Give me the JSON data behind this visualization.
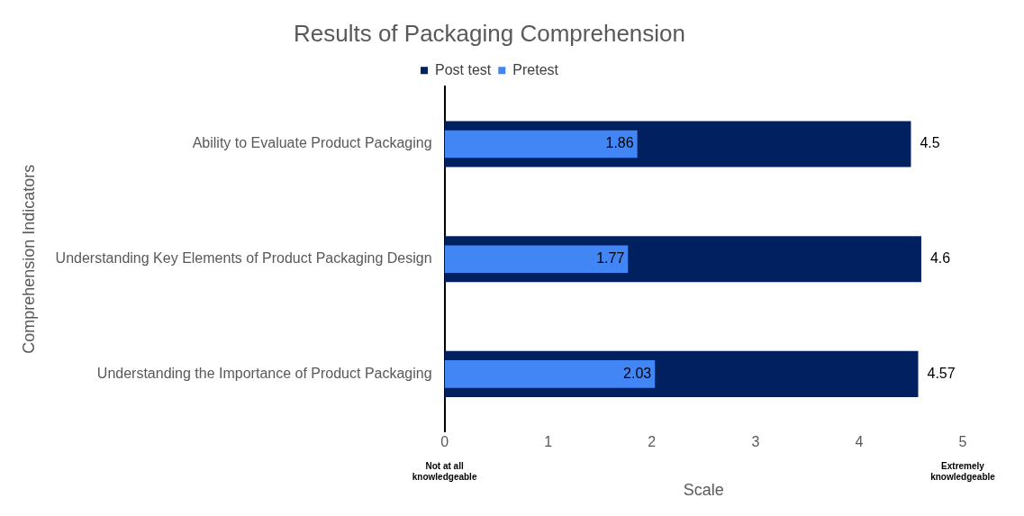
{
  "chart_data": {
    "type": "bar",
    "orientation": "horizontal",
    "title": "Results of Packaging Comprehension",
    "xlabel": "Scale",
    "ylabel": "Comprehension Indicators",
    "categories": [
      "Ability to Evaluate Product Packaging",
      "Understanding Key Elements of Product Packaging Design",
      "Understanding the Importance of Product Packaging"
    ],
    "series": [
      {
        "name": "Post test",
        "color": "#002060",
        "values": [
          4.5,
          4.6,
          4.57
        ]
      },
      {
        "name": "Pretest",
        "color": "#4285f4",
        "values": [
          1.86,
          1.77,
          2.03
        ]
      }
    ],
    "xlim": [
      0,
      5
    ],
    "xticks": [
      0,
      1,
      2,
      3,
      4,
      5
    ],
    "grid": false,
    "legend": "top",
    "data_labels": true,
    "annotations": [
      "Not at all knowledgeable",
      "Extremely knowledgeable"
    ]
  }
}
